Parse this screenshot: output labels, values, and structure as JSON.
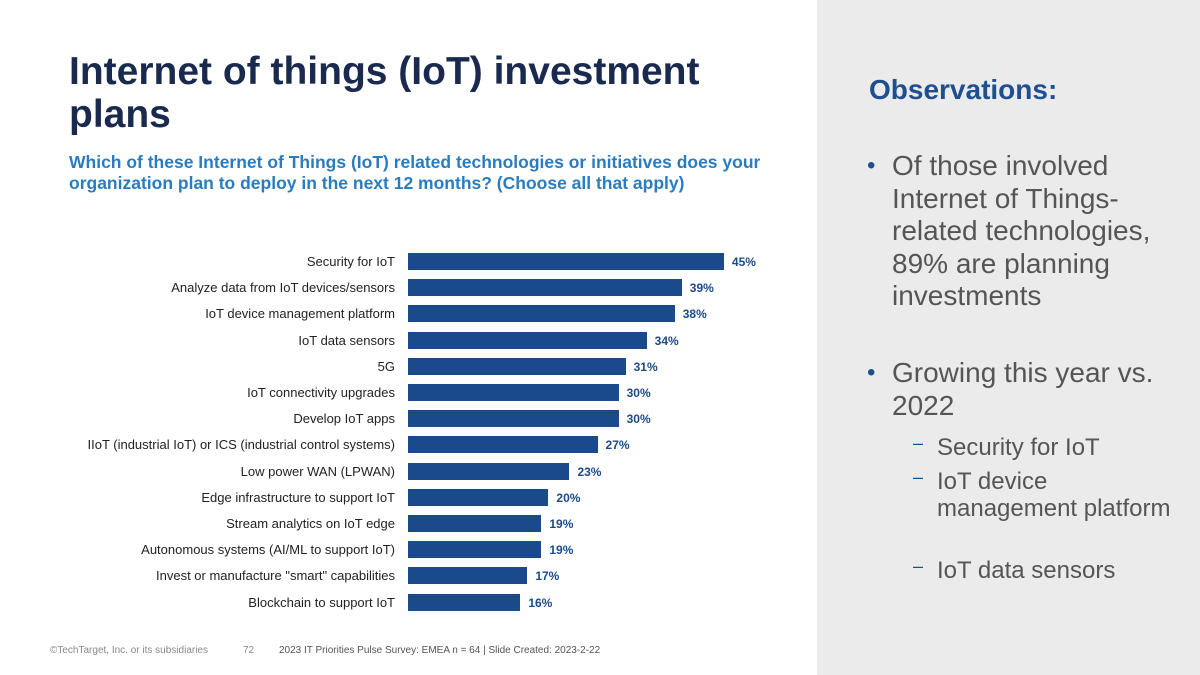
{
  "title": "Internet of things (IoT) investment plans",
  "question": "Which of these Internet of Things (IoT) related technologies or initiatives does your organization plan to deploy in the next 12 months? (Choose all that apply)",
  "observations": {
    "heading": "Observations:",
    "bullets": [
      "Of those involved Internet of Things-related technologies, 89% are planning investments",
      "Growing this year vs. 2022"
    ],
    "sub_bullets": [
      "Security for IoT",
      "IoT device management platform",
      "IoT data sensors"
    ]
  },
  "footer": {
    "copyright": "©TechTarget, Inc. or its subsidiaries",
    "page": "72",
    "source": "2023 IT Priorities Pulse Survey: EMEA  n = 64 | Slide Created: 2023-2-22"
  },
  "colors": {
    "bar": "#1a4a8a",
    "title": "#1a2a4f",
    "question": "#2a7cc1",
    "sidebar": "#ebebeb"
  },
  "chart_data": {
    "type": "bar",
    "orientation": "horizontal",
    "categories": [
      "Security for IoT",
      "Analyze data from IoT devices/sensors",
      "IoT device management platform",
      "IoT data sensors",
      "5G",
      "IoT connectivity upgrades",
      "Develop IoT apps",
      "IIoT (industrial IoT) or ICS (industrial control systems)",
      "Low power WAN (LPWAN)",
      "Edge infrastructure to support IoT",
      "Stream analytics on IoT edge",
      "Autonomous systems (AI/ML to support IoT)",
      "Invest or manufacture \"smart\" capabilities",
      "Blockchain to support IoT"
    ],
    "values": [
      45,
      39,
      38,
      34,
      31,
      30,
      30,
      27,
      23,
      20,
      19,
      19,
      17,
      16
    ],
    "labels": [
      "45%",
      "39%",
      "38%",
      "34%",
      "31%",
      "30%",
      "30%",
      "27%",
      "23%",
      "20%",
      "19%",
      "19%",
      "17%",
      "16%"
    ],
    "unit": "%",
    "grid": false
  }
}
